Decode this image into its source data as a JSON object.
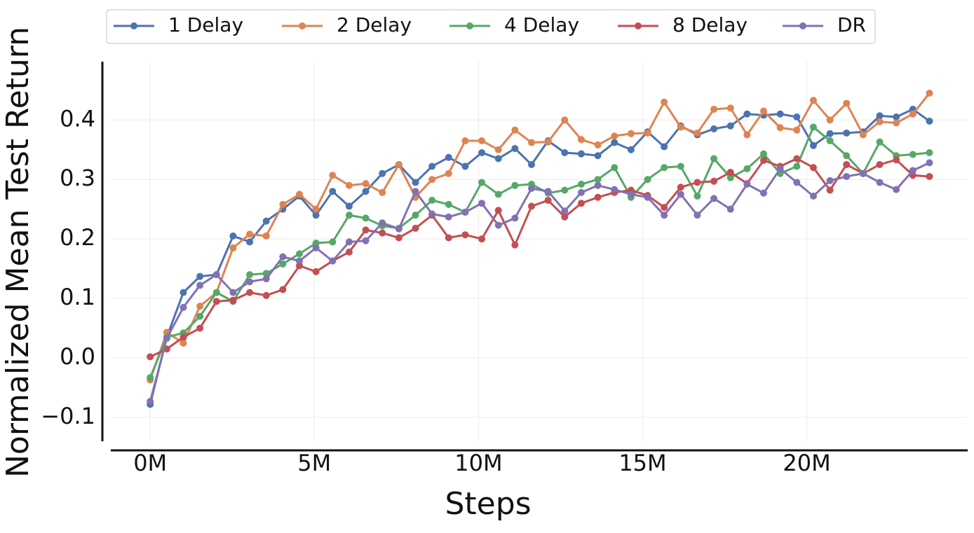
{
  "chart_data": {
    "type": "line",
    "xlabel": "Steps",
    "ylabel": "Normalized Mean Test Return",
    "x": [
      0,
      505000,
      1010000,
      1515000,
      2020000,
      2525000,
      3030000,
      3535000,
      4040000,
      4545000,
      5050000,
      5555000,
      6060000,
      6565000,
      7070000,
      7575000,
      8080000,
      8585000,
      9090000,
      9595000,
      10100000,
      10605000,
      11110000,
      11615000,
      12120000,
      12625000,
      13130000,
      13635000,
      14140000,
      14645000,
      15150000,
      15655000,
      16160000,
      16665000,
      17170000,
      17675000,
      18180000,
      18685000,
      19190000,
      19695000,
      20200000,
      20705000,
      21210000,
      21715000,
      22220000,
      22725000,
      23230000,
      23735000
    ],
    "series": [
      {
        "name": "1 Delay",
        "color": "#4c72b0",
        "values": [
          -0.078,
          0.035,
          0.11,
          0.137,
          0.14,
          0.205,
          0.195,
          0.23,
          0.25,
          0.272,
          0.24,
          0.28,
          0.255,
          0.28,
          0.31,
          0.325,
          0.295,
          0.322,
          0.337,
          0.322,
          0.345,
          0.335,
          0.352,
          0.325,
          0.365,
          0.345,
          0.343,
          0.34,
          0.362,
          0.35,
          0.38,
          0.355,
          0.39,
          0.375,
          0.385,
          0.39,
          0.41,
          0.408,
          0.41,
          0.405,
          0.357,
          0.377,
          0.378,
          0.38,
          0.407,
          0.405,
          0.418,
          0.398
        ]
      },
      {
        "name": "2 Delay",
        "color": "#dd8452",
        "values": [
          -0.037,
          0.043,
          0.025,
          0.087,
          0.11,
          0.185,
          0.208,
          0.205,
          0.258,
          0.275,
          0.25,
          0.307,
          0.29,
          0.293,
          0.278,
          0.325,
          0.27,
          0.3,
          0.31,
          0.365,
          0.365,
          0.35,
          0.383,
          0.362,
          0.363,
          0.4,
          0.367,
          0.358,
          0.373,
          0.377,
          0.378,
          0.43,
          0.388,
          0.378,
          0.418,
          0.42,
          0.375,
          0.415,
          0.387,
          0.383,
          0.433,
          0.4,
          0.428,
          0.375,
          0.397,
          0.395,
          0.41,
          0.445
        ]
      },
      {
        "name": "4 Delay",
        "color": "#55a868",
        "values": [
          -0.033,
          0.035,
          0.042,
          0.07,
          0.11,
          0.095,
          0.14,
          0.142,
          0.158,
          0.175,
          0.193,
          0.195,
          0.24,
          0.235,
          0.222,
          0.218,
          0.24,
          0.265,
          0.258,
          0.245,
          0.295,
          0.275,
          0.29,
          0.292,
          0.277,
          0.282,
          0.292,
          0.3,
          0.32,
          0.27,
          0.3,
          0.32,
          0.322,
          0.272,
          0.335,
          0.303,
          0.318,
          0.343,
          0.31,
          0.322,
          0.388,
          0.365,
          0.34,
          0.31,
          0.363,
          0.34,
          0.342,
          0.345
        ]
      },
      {
        "name": "8 Delay",
        "color": "#c44e52",
        "values": [
          0.002,
          0.015,
          0.035,
          0.05,
          0.095,
          0.097,
          0.11,
          0.105,
          0.115,
          0.155,
          0.145,
          0.163,
          0.178,
          0.215,
          0.21,
          0.202,
          0.218,
          0.24,
          0.202,
          0.207,
          0.2,
          0.248,
          0.19,
          0.255,
          0.265,
          0.237,
          0.26,
          0.27,
          0.278,
          0.282,
          0.273,
          0.253,
          0.287,
          0.295,
          0.297,
          0.312,
          0.293,
          0.332,
          0.322,
          0.335,
          0.32,
          0.282,
          0.325,
          0.31,
          0.325,
          0.333,
          0.307,
          0.305
        ]
      },
      {
        "name": "DR",
        "color": "#8172b3",
        "values": [
          -0.073,
          0.033,
          0.085,
          0.122,
          0.14,
          0.11,
          0.128,
          0.133,
          0.17,
          0.163,
          0.185,
          0.163,
          0.195,
          0.197,
          0.227,
          0.217,
          0.28,
          0.242,
          0.237,
          0.245,
          0.26,
          0.223,
          0.235,
          0.285,
          0.28,
          0.247,
          0.278,
          0.29,
          0.283,
          0.275,
          0.27,
          0.24,
          0.275,
          0.24,
          0.268,
          0.25,
          0.292,
          0.277,
          0.318,
          0.295,
          0.272,
          0.298,
          0.305,
          0.31,
          0.295,
          0.283,
          0.315,
          0.328
        ]
      }
    ],
    "xlim": [
      -1200000,
      24900000
    ],
    "xticks": [
      {
        "value": 0,
        "label": "0M"
      },
      {
        "value": 5000000,
        "label": "5M"
      },
      {
        "value": 10000000,
        "label": "10M"
      },
      {
        "value": 15000000,
        "label": "15M"
      },
      {
        "value": 20000000,
        "label": "20M"
      }
    ],
    "ylim": [
      -0.14,
      0.498
    ],
    "yticks": [
      {
        "value": -0.1,
        "label": "−0.1"
      },
      {
        "value": 0,
        "label": "0.0"
      },
      0.1,
      0.2,
      0.3,
      0.4
    ],
    "grid": true,
    "legend": "top"
  }
}
